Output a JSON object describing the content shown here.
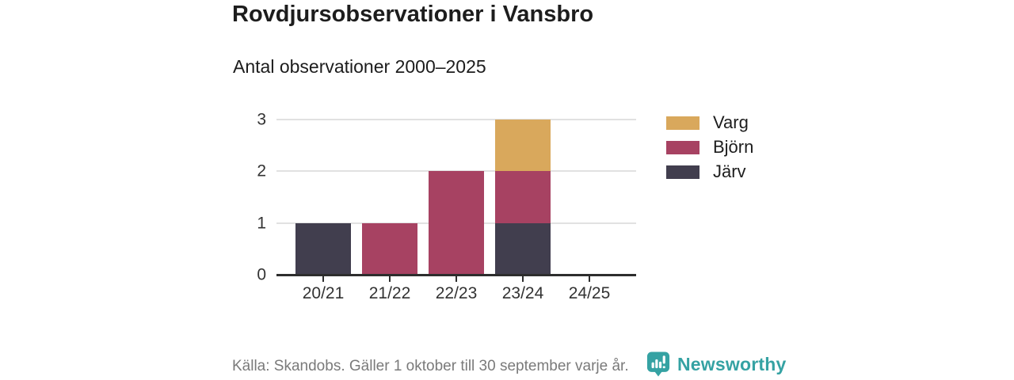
{
  "header": {
    "title": "Rovdjursobservationer i Vansbro",
    "subtitle": "Antal observationer 2000–2025"
  },
  "chart_data": {
    "type": "bar",
    "stacked": true,
    "title": "Rovdjursobservationer i Vansbro",
    "subtitle": "Antal observationer 2000–2025",
    "categories": [
      "20/21",
      "21/22",
      "22/23",
      "23/24",
      "24/25"
    ],
    "series": [
      {
        "name": "Varg",
        "color": "#d9a85c",
        "values": [
          0,
          0,
          0,
          1,
          0
        ]
      },
      {
        "name": "Björn",
        "color": "#a74262",
        "values": [
          0,
          1,
          2,
          1,
          0
        ]
      },
      {
        "name": "Järv",
        "color": "#413e4e",
        "values": [
          1,
          0,
          0,
          1,
          0
        ]
      }
    ],
    "totals": [
      1,
      1,
      2,
      3,
      0
    ],
    "ylim": [
      0,
      3
    ],
    "yticks": [
      0,
      1,
      2,
      3
    ],
    "grid": true,
    "legend_position": "right",
    "axis_color": "#2d2d2d",
    "grid_color": "#e1e1e1"
  },
  "footer": {
    "source": "Källa: Skandobs. Gäller 1 oktober till 30 september varje år.",
    "brand": "Newsworthy",
    "brand_color": "#35a2a3"
  }
}
